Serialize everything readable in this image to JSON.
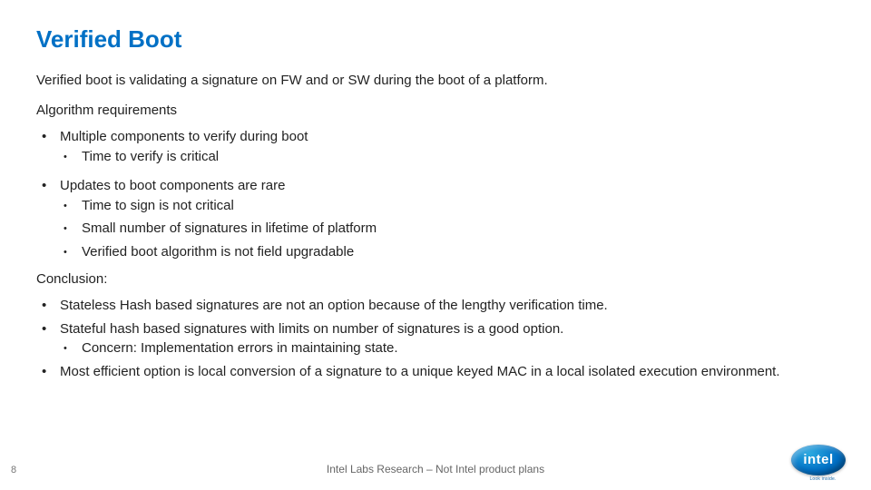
{
  "colors": {
    "title": "#0070c5",
    "body": "#222222",
    "footer_text": "#666666",
    "page_number": "#777777",
    "background": "#ffffff",
    "logo_gradient": [
      "#2aa9e0",
      "#0070c5",
      "#004a86"
    ]
  },
  "typography": {
    "title_fontsize": 26,
    "body_fontsize": 15,
    "footer_fontsize": 12,
    "pagenum_fontsize": 11,
    "font_family": "Verdana"
  },
  "title": "Verified Boot",
  "intro": "Verified boot is validating a signature on FW and or SW during the boot of a platform.",
  "algo_label": "Algorithm requirements",
  "algo": [
    {
      "text": "Multiple components to verify during boot",
      "sub": [
        "Time to verify is critical"
      ]
    },
    {
      "text": "Updates to boot components are rare",
      "sub": [
        "Time to sign is not critical",
        "Small number of signatures in lifetime of platform",
        "Verified boot algorithm is not field upgradable"
      ]
    }
  ],
  "conclusion_label": "Conclusion:",
  "conclusion": [
    {
      "text": "Stateless Hash based signatures are not an option because of the lengthy verification time.",
      "sub": []
    },
    {
      "text": "Stateful hash based signatures with limits on number of signatures is a good option.",
      "sub": [
        "Concern: Implementation errors in maintaining state."
      ]
    },
    {
      "text": "Most efficient option is local conversion of a signature to a unique keyed MAC in a local isolated execution environment.",
      "sub": []
    }
  ],
  "footer": {
    "page_number": "8",
    "text": "Intel Labs Research – Not Intel product plans",
    "logo_text": "intel",
    "logo_sub": "Look inside."
  }
}
